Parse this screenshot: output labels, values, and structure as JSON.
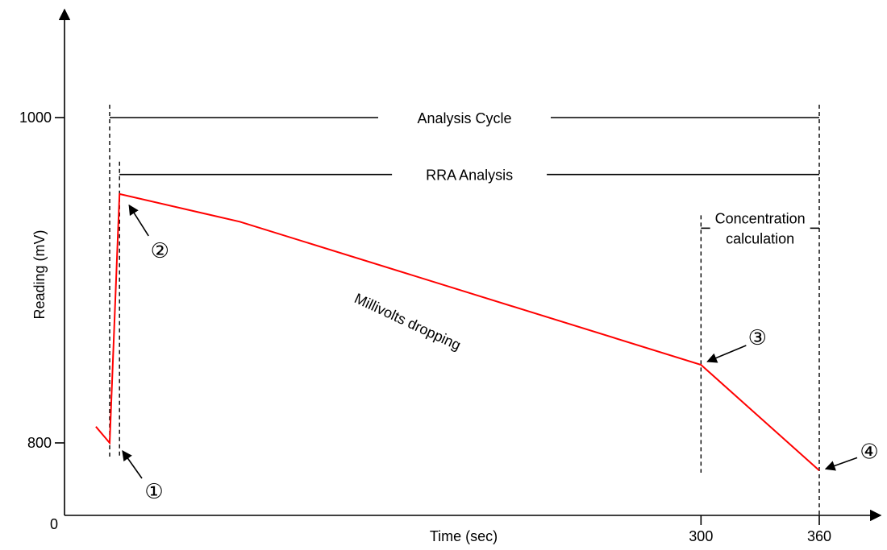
{
  "chart_data": {
    "type": "line",
    "xlabel": "Time (sec)",
    "ylabel": "Reading (mV)",
    "origin_label": "0",
    "x_ticks": [
      300,
      360
    ],
    "y_ticks": [
      800,
      1000
    ],
    "series": [
      {
        "x": [
          -7,
          0,
          5,
          66,
          300,
          360
        ],
        "y": [
          810,
          800,
          953,
          936,
          848,
          783
        ],
        "color": "#ff0000"
      }
    ],
    "markers": [
      {
        "x": 0,
        "line": "dashed"
      },
      {
        "x": 5,
        "line": "dashed"
      },
      {
        "x": 300,
        "line": "dashed"
      },
      {
        "x": 360,
        "line": "dashed"
      }
    ],
    "spans": [
      {
        "label": "Analysis Cycle",
        "x_start": 0,
        "x_end": 360,
        "y": 1000
      },
      {
        "label": "RRA Analysis",
        "x_start": 5,
        "x_end": 360,
        "y": 965
      },
      {
        "label": "Concentration calculation",
        "line1": "Concentration",
        "line2": "calculation",
        "x_start": 300,
        "x_end": 360,
        "y": 932
      }
    ],
    "annotations": [
      {
        "label": "①",
        "x": 0,
        "y": 800
      },
      {
        "label": "②",
        "x": 5,
        "y": 953
      },
      {
        "label": "③",
        "x": 300,
        "y": 848
      },
      {
        "label": "④",
        "x": 360,
        "y": 783
      }
    ],
    "curve_note": "Millivolts dropping",
    "grid": false,
    "legend": "none"
  }
}
